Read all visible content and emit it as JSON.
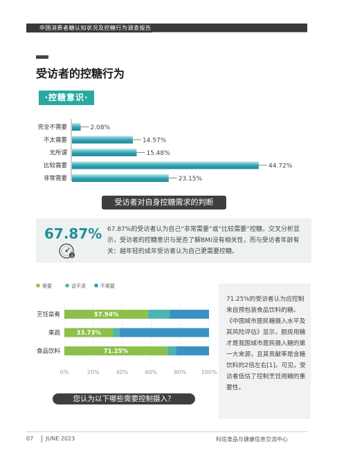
{
  "header": {
    "title": "中国消费者糖认知状况及控糖行为调查报告"
  },
  "section": {
    "title": "受访者的控糖行为",
    "badge": "·控糖意识·"
  },
  "chart_data": [
    {
      "type": "bar",
      "orientation": "horizontal",
      "categories": [
        "完全不需要",
        "不太需要",
        "无所谓",
        "比较需要",
        "非常需要"
      ],
      "values": [
        2.08,
        14.57,
        15.48,
        44.72,
        23.15
      ],
      "labels": [
        "2.08%",
        "14.57%",
        "15.48%",
        "44.72%",
        "23.15%"
      ],
      "title": "",
      "xlabel": "",
      "ylabel": "",
      "xlim": [
        0,
        50
      ]
    },
    {
      "type": "bar",
      "orientation": "horizontal",
      "stacked": true,
      "categories": [
        "烹饪菜肴",
        "果蔬",
        "食品饮料"
      ],
      "series": [
        {
          "name": "需要",
          "values": [
            57.94,
            33.73,
            71.25
          ],
          "color": "#8cc04a"
        },
        {
          "name": "说不清",
          "values": [
            15.0,
            4.5,
            6.0
          ],
          "color": "#4cb5b0"
        },
        {
          "name": "不需要",
          "values": [
            27.06,
            61.77,
            22.75
          ],
          "color": "#3a92c2"
        }
      ],
      "value_labels": [
        "57.94%",
        "33.73%",
        "71.25%"
      ],
      "ticks": [
        "0%",
        "20%",
        "40%",
        "60%",
        "80%",
        "100%"
      ],
      "xlim": [
        0,
        100
      ]
    }
  ],
  "judgment": {
    "banner": "受访者对自身控糖需求的判断",
    "big_number": "67.87%",
    "text": "67.87%的受访者认为自己“非常需要”或“比较需要”控糖，交叉分析显示，受访者的控糖意识与是否了解BMI没有相关性，而与受访者年龄有关：越年轻的成年受访者认为自己更需要控糖。"
  },
  "side_note": "71.25%的受访者认为应控制来自预包装食品饮料的糖。《中国城市居民糖摄入水平及其风险评估》显示，厨房用糖才是我国城市居民摄入糖的第一大来源，且其贡献率是含糖饮料的2倍左右[1]。可见，受访者低估了控制烹饪用糖的重要性。",
  "question": "您认为以下哪些需要控制摄入？",
  "footer": {
    "page": "07",
    "date": "JUNE·2023",
    "org": "科信食品与健康信息交流中心"
  }
}
